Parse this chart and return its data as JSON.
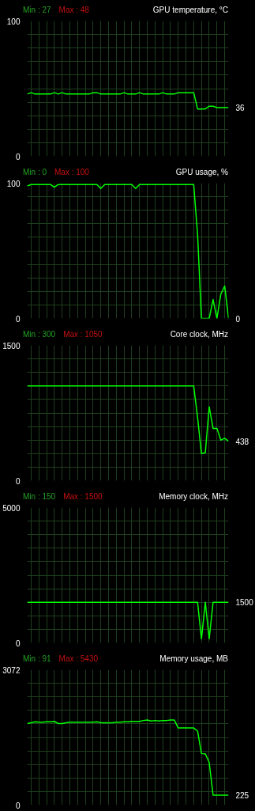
{
  "chart_data": [
    {
      "type": "line",
      "title": "GPU temperature, °C",
      "categories": [
        null,
        null,
        null,
        null,
        null,
        null,
        null,
        null,
        null,
        null,
        null,
        null,
        null,
        null,
        null,
        null,
        null,
        null,
        null,
        null,
        null,
        null,
        null,
        null,
        null,
        null,
        null,
        null,
        null,
        null,
        null,
        null,
        null,
        null,
        null,
        null,
        null,
        null,
        null,
        null,
        null,
        null,
        null,
        null,
        null,
        null,
        null,
        null,
        null,
        null,
        null,
        null,
        null
      ],
      "series": [
        {
          "color": "#00ff00",
          "values": [
            46,
            47,
            46,
            46,
            46,
            46,
            46,
            47,
            46,
            47,
            46,
            46,
            46,
            46,
            46,
            46,
            46,
            47,
            47,
            46,
            46,
            46,
            46,
            46,
            46,
            47,
            46,
            46,
            46,
            47,
            46,
            46,
            46,
            46,
            46,
            47,
            46,
            46,
            46,
            47,
            47,
            47,
            47,
            47,
            35,
            35,
            35,
            37,
            37,
            36,
            36,
            36,
            36
          ]
        }
      ],
      "ylim": [
        0,
        100
      ],
      "yticks": [
        0,
        {
          "value": 10,
          "label": null
        },
        {
          "value": 20,
          "label": null
        },
        {
          "value": 30,
          "label": null
        },
        {
          "value": 40,
          "label": null
        },
        {
          "value": 50,
          "label": null
        },
        {
          "value": 60,
          "label": null
        },
        {
          "value": 70,
          "label": null
        },
        {
          "value": 80,
          "label": null
        },
        {
          "value": 90,
          "label": null
        },
        100
      ],
      "grid": true,
      "tick_labels": "y",
      "annotations": [
        "Min : 27",
        "Max : 48",
        "36"
      ]
    },
    {
      "type": "line",
      "title": "GPU usage, %",
      "categories": [
        null,
        null,
        null,
        null,
        null,
        null,
        null,
        null,
        null,
        null,
        null,
        null,
        null,
        null,
        null,
        null,
        null,
        null,
        null,
        null,
        null,
        null,
        null,
        null,
        null,
        null,
        null,
        null,
        null,
        null,
        null,
        null,
        null,
        null,
        null,
        null,
        null,
        null,
        null,
        null,
        null,
        null,
        null,
        null,
        null,
        null,
        null,
        null,
        null,
        null,
        null,
        null,
        null
      ],
      "series": [
        {
          "color": "#00ff00",
          "values": [
            98,
            99,
            99,
            99,
            99,
            99,
            99,
            97,
            99,
            99,
            99,
            99,
            99,
            99,
            99,
            99,
            99,
            99,
            99,
            96,
            99,
            99,
            99,
            99,
            99,
            99,
            99,
            99,
            96,
            99,
            99,
            99,
            99,
            99,
            99,
            99,
            99,
            99,
            99,
            99,
            99,
            99,
            99,
            99,
            62,
            0,
            0,
            0,
            14,
            0,
            18,
            24,
            0
          ]
        }
      ],
      "ylim": [
        0,
        100
      ],
      "yticks": [
        0,
        {
          "value": 10,
          "label": null
        },
        {
          "value": 20,
          "label": null
        },
        {
          "value": 30,
          "label": null
        },
        {
          "value": 40,
          "label": null
        },
        {
          "value": 50,
          "label": null
        },
        {
          "value": 60,
          "label": null
        },
        {
          "value": 70,
          "label": null
        },
        {
          "value": 80,
          "label": null
        },
        {
          "value": 90,
          "label": null
        },
        100
      ],
      "grid": true,
      "tick_labels": "y",
      "annotations": [
        "Min : 0",
        "Max : 100",
        "0"
      ]
    },
    {
      "type": "line",
      "title": "Core clock, MHz",
      "categories": [
        null,
        null,
        null,
        null,
        null,
        null,
        null,
        null,
        null,
        null,
        null,
        null,
        null,
        null,
        null,
        null,
        null,
        null,
        null,
        null,
        null,
        null,
        null,
        null,
        null,
        null,
        null,
        null,
        null,
        null,
        null,
        null,
        null,
        null,
        null,
        null,
        null,
        null,
        null,
        null,
        null,
        null,
        null,
        null,
        null,
        null,
        null,
        null,
        null,
        null,
        null,
        null,
        null
      ],
      "series": [
        {
          "color": "#00ff00",
          "values": [
            1050,
            1050,
            1050,
            1050,
            1050,
            1050,
            1050,
            1050,
            1050,
            1050,
            1050,
            1050,
            1050,
            1050,
            1050,
            1050,
            1050,
            1050,
            1050,
            1050,
            1050,
            1050,
            1050,
            1050,
            1050,
            1050,
            1050,
            1050,
            1050,
            1050,
            1050,
            1050,
            1050,
            1050,
            1050,
            1050,
            1050,
            1050,
            1050,
            1050,
            1050,
            1050,
            1050,
            1050,
            700,
            300,
            310,
            820,
            580,
            580,
            450,
            470,
            438
          ]
        }
      ],
      "ylim": [
        0,
        1500
      ],
      "yticks": [
        0,
        {
          "value": 150,
          "label": null
        },
        {
          "value": 300,
          "label": null
        },
        {
          "value": 450,
          "label": null
        },
        {
          "value": 600,
          "label": null
        },
        {
          "value": 750,
          "label": null
        },
        {
          "value": 900,
          "label": null
        },
        {
          "value": 1050,
          "label": null
        },
        {
          "value": 1200,
          "label": null
        },
        {
          "value": 1350,
          "label": null
        },
        1500
      ],
      "grid": true,
      "tick_labels": "y",
      "annotations": [
        "Min : 300",
        "Max : 1050",
        "438"
      ]
    },
    {
      "type": "line",
      "title": "Memory clock, MHz",
      "categories": [
        null,
        null,
        null,
        null,
        null,
        null,
        null,
        null,
        null,
        null,
        null,
        null,
        null,
        null,
        null,
        null,
        null,
        null,
        null,
        null,
        null,
        null,
        null,
        null,
        null,
        null,
        null,
        null,
        null,
        null,
        null,
        null,
        null,
        null,
        null,
        null,
        null,
        null,
        null,
        null,
        null,
        null,
        null,
        null,
        null,
        null,
        null,
        null,
        null,
        null,
        null,
        null,
        null
      ],
      "series": [
        {
          "color": "#00ff00",
          "values": [
            1500,
            1500,
            1500,
            1500,
            1500,
            1500,
            1500,
            1500,
            1500,
            1500,
            1500,
            1500,
            1500,
            1500,
            1500,
            1500,
            1500,
            1500,
            1500,
            1500,
            1500,
            1500,
            1500,
            1500,
            1500,
            1500,
            1500,
            1500,
            1500,
            1500,
            1500,
            1500,
            1500,
            1500,
            1500,
            1500,
            1500,
            1500,
            1500,
            1500,
            1500,
            1500,
            1500,
            1500,
            1500,
            150,
            1500,
            150,
            1500,
            1500,
            1500,
            1500,
            1500
          ]
        }
      ],
      "ylim": [
        0,
        5000
      ],
      "yticks": [
        0,
        {
          "value": 500,
          "label": null
        },
        {
          "value": 1000,
          "label": null
        },
        {
          "value": 1500,
          "label": null
        },
        {
          "value": 2000,
          "label": null
        },
        {
          "value": 2500,
          "label": null
        },
        {
          "value": 3000,
          "label": null
        },
        {
          "value": 3500,
          "label": null
        },
        {
          "value": 4000,
          "label": null
        },
        {
          "value": 4500,
          "label": null
        },
        5000
      ],
      "grid": true,
      "tick_labels": "y",
      "annotations": [
        "Min : 150",
        "Max : 1500",
        "1500"
      ]
    },
    {
      "type": "line",
      "title": "Memory usage, MB",
      "categories": [
        null,
        null,
        null,
        null,
        null,
        null,
        null,
        null,
        null,
        null,
        null,
        null,
        null,
        null,
        null,
        null,
        null,
        null,
        null,
        null,
        null,
        null,
        null,
        null,
        null,
        null,
        null,
        null,
        null,
        null,
        null,
        null,
        null,
        null,
        null,
        null,
        null,
        null,
        null,
        null,
        null,
        null,
        null,
        null,
        null,
        null,
        null,
        null,
        null,
        null,
        null,
        null,
        null
      ],
      "series": [
        {
          "color": "#00ff00",
          "values": [
            1850,
            1870,
            1890,
            1880,
            1880,
            1890,
            1890,
            1900,
            1850,
            1850,
            1870,
            1880,
            1880,
            1880,
            1880,
            1880,
            1880,
            1880,
            1890,
            1870,
            1870,
            1870,
            1870,
            1880,
            1880,
            1890,
            1890,
            1900,
            1900,
            1900,
            1920,
            1930,
            1910,
            1920,
            1910,
            1920,
            1920,
            1930,
            1930,
            1750,
            1750,
            1750,
            1750,
            1750,
            1680,
            1170,
            1160,
            970,
            225,
            225,
            225,
            225,
            225
          ]
        }
      ],
      "ylim": [
        0,
        3072
      ],
      "yticks": [
        0,
        {
          "value": 307.2,
          "label": null
        },
        {
          "value": 614.4,
          "label": null
        },
        {
          "value": 921.6,
          "label": null
        },
        {
          "value": 1228.8,
          "label": null
        },
        {
          "value": 1536,
          "label": null
        },
        {
          "value": 1843.2,
          "label": null
        },
        {
          "value": 2150.4,
          "label": null
        },
        {
          "value": 2457.6,
          "label": null
        },
        {
          "value": 2764.8,
          "label": null
        },
        3072
      ],
      "grid": true,
      "tick_labels": "y",
      "annotations": [
        "Min : 91",
        "Max : 5430",
        "225"
      ]
    }
  ]
}
